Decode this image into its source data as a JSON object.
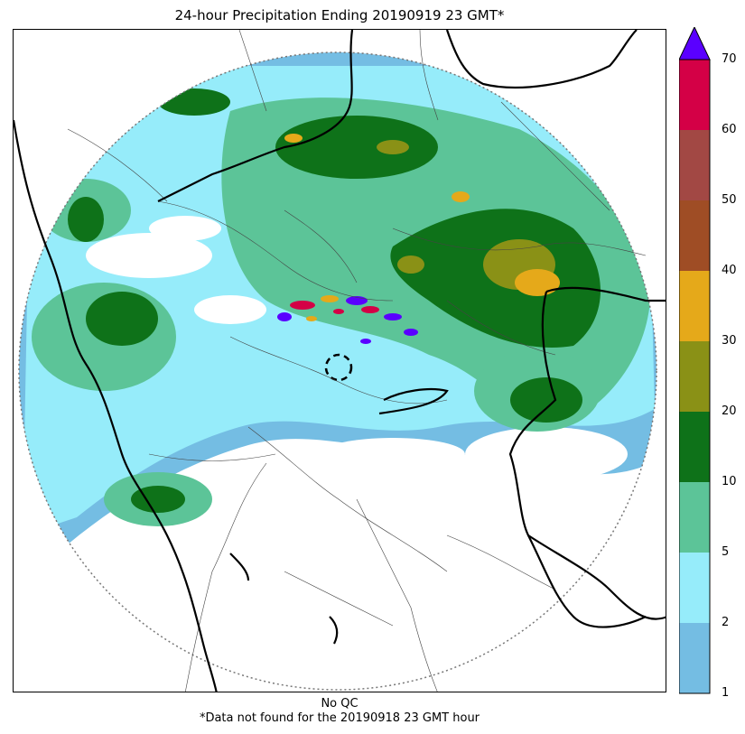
{
  "title": "24-hour Precipitation Ending 20190919 23 GMT*",
  "caption_line1": "No QC",
  "caption_line2": "*Data not found for the 20190918 23 GMT hour",
  "colorbar": {
    "extend_color": "#5a00ff",
    "levels": [
      {
        "label": "1",
        "color": "#74bde3"
      },
      {
        "label": "2",
        "color": "#96ecfa"
      },
      {
        "label": "5",
        "color": "#5cc498"
      },
      {
        "label": "10",
        "color": "#0e7219"
      },
      {
        "label": "20",
        "color": "#8a9116"
      },
      {
        "label": "30",
        "color": "#e5a91a"
      },
      {
        "label": "40",
        "color": "#9f4d25"
      },
      {
        "label": "50",
        "color": "#a24844"
      },
      {
        "label": "60",
        "color": "#d40046"
      }
    ],
    "top_label": "70"
  },
  "map": {
    "radar_coverage": "circular",
    "border_color": "#000000",
    "region_line_color": "#444444"
  }
}
